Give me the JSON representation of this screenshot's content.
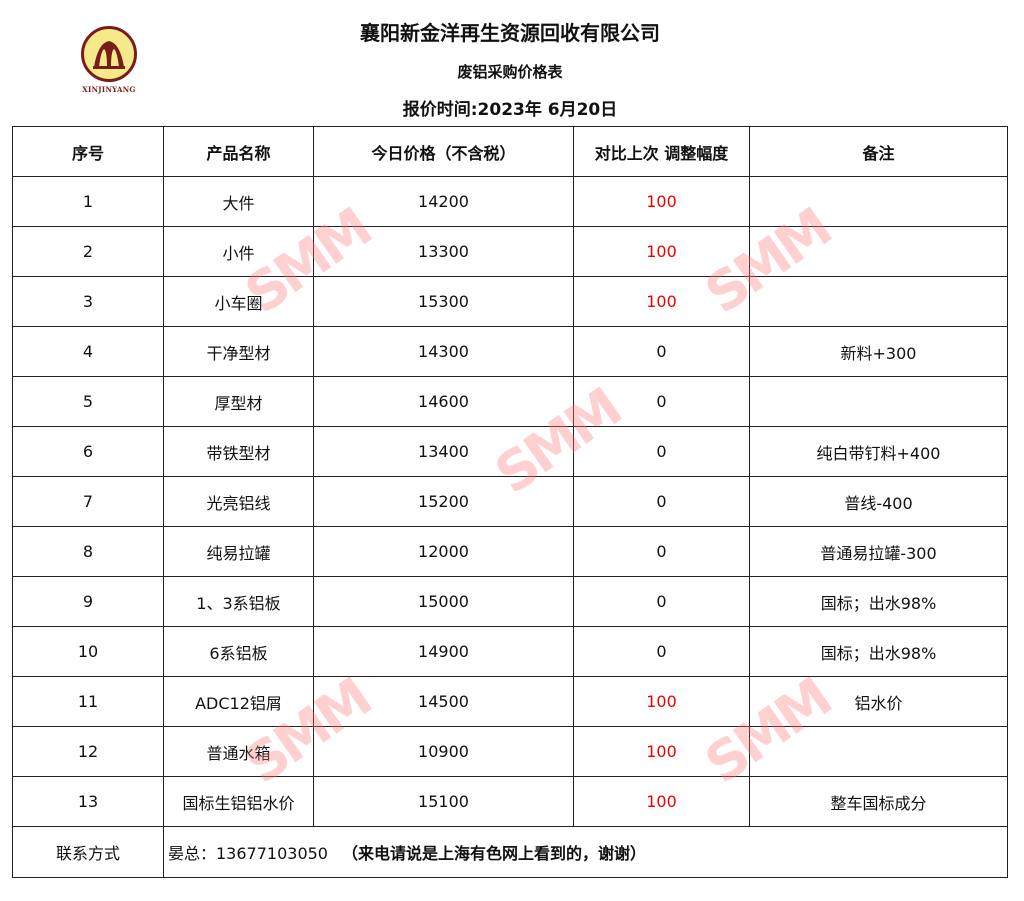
{
  "header": {
    "company": "襄阳新金洋再生资源回收有限公司",
    "subtitle": "废铝采购价格表",
    "date": "报价时间:2023年 6月20日",
    "logo_text": "XINJINYANG"
  },
  "table": {
    "columns": [
      "序号",
      "产品名称",
      "今日价格（不含税）",
      "对比上次 调整幅度",
      "备注"
    ],
    "rows": [
      {
        "no": "1",
        "name": "大件",
        "price": "14200",
        "change": "100",
        "note": ""
      },
      {
        "no": "2",
        "name": "小件",
        "price": "13300",
        "change": "100",
        "note": ""
      },
      {
        "no": "3",
        "name": "小车圈",
        "price": "15300",
        "change": "100",
        "note": ""
      },
      {
        "no": "4",
        "name": "干净型材",
        "price": "14300",
        "change": "0",
        "note": "新料+300"
      },
      {
        "no": "5",
        "name": "厚型材",
        "price": "14600",
        "change": "0",
        "note": ""
      },
      {
        "no": "6",
        "name": "带铁型材",
        "price": "13400",
        "change": "0",
        "note": "纯白带钉料+400"
      },
      {
        "no": "7",
        "name": "光亮铝线",
        "price": "15200",
        "change": "0",
        "note": "普线-400"
      },
      {
        "no": "8",
        "name": "纯易拉罐",
        "price": "12000",
        "change": "0",
        "note": "普通易拉罐-300"
      },
      {
        "no": "9",
        "name": "1、3系铝板",
        "price": "15000",
        "change": "0",
        "note": "国标；出水98%"
      },
      {
        "no": "10",
        "name": "6系铝板",
        "price": "14900",
        "change": "0",
        "note": "国标；出水98%"
      },
      {
        "no": "11",
        "name": "ADC12铝屑",
        "price": "14500",
        "change": "100",
        "note": "铝水价"
      },
      {
        "no": "12",
        "name": "普通水箱",
        "price": "10900",
        "change": "100",
        "note": ""
      },
      {
        "no": "13",
        "name": "国标生铝铝水价",
        "price": "15100",
        "change": "100",
        "note": "整车国标成分"
      }
    ]
  },
  "footer": {
    "label": "联系方式",
    "contact": "晏总：13677103050",
    "note": "（来电请说是上海有色网上看到的，谢谢）"
  },
  "watermark": "SMM",
  "colors": {
    "increase": "#e00000",
    "logo_ring": "#7a1c1c",
    "logo_fill": "#f5e98a"
  }
}
